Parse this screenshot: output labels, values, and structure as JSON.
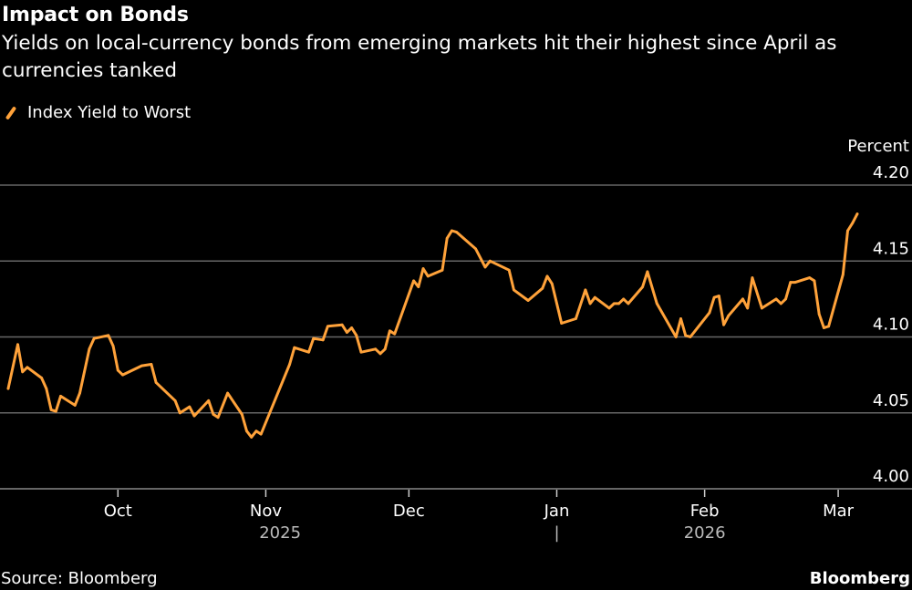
{
  "header": {
    "title": "Impact on Bonds",
    "subtitle": "Yields on local-currency bonds from emerging markets hit their highest since April as currencies tanked"
  },
  "footer": {
    "source": "Source: Bloomberg",
    "logo": "Bloomberg"
  },
  "colors": {
    "series": "#ffa23a",
    "grid": "#666666",
    "background": "#000000"
  },
  "chart_data": {
    "type": "line",
    "title": "Impact on Bonds",
    "ylabel": "Percent",
    "ylim": [
      4.0,
      4.2
    ],
    "yticks": [
      "4.00",
      "4.05",
      "4.10",
      "4.15",
      "4.20"
    ],
    "xlim": [
      "2025-09-08",
      "2026-03-05"
    ],
    "xticks": [
      {
        "label": "Oct",
        "date": "2025-10-01"
      },
      {
        "label": "Nov",
        "date": "2025-11-01"
      },
      {
        "label": "Dec",
        "date": "2025-12-01"
      },
      {
        "label": "Jan",
        "date": "2026-01-01"
      },
      {
        "label": "Feb",
        "date": "2026-02-01"
      },
      {
        "label": "Mar",
        "date": "2026-03-01"
      }
    ],
    "years": [
      {
        "label": "2025",
        "date": "2025-11-04"
      },
      {
        "label": "2026",
        "date": "2026-02-01"
      }
    ],
    "year_separator": "|",
    "grid": "horizontal",
    "legend": "top-left",
    "series": [
      {
        "name": "Index Yield to Worst",
        "points": [
          [
            "2025-09-08",
            4.066
          ],
          [
            "2025-09-10",
            4.095
          ],
          [
            "2025-09-11",
            4.077
          ],
          [
            "2025-09-12",
            4.08
          ],
          [
            "2025-09-15",
            4.073
          ],
          [
            "2025-09-16",
            4.066
          ],
          [
            "2025-09-17",
            4.052
          ],
          [
            "2025-09-18",
            4.051
          ],
          [
            "2025-09-19",
            4.061
          ],
          [
            "2025-09-22",
            4.055
          ],
          [
            "2025-09-23",
            4.063
          ],
          [
            "2025-09-25",
            4.092
          ],
          [
            "2025-09-26",
            4.099
          ],
          [
            "2025-09-29",
            4.101
          ],
          [
            "2025-09-30",
            4.094
          ],
          [
            "2025-10-01",
            4.078
          ],
          [
            "2025-10-02",
            4.075
          ],
          [
            "2025-10-06",
            4.081
          ],
          [
            "2025-10-08",
            4.082
          ],
          [
            "2025-10-09",
            4.07
          ],
          [
            "2025-10-13",
            4.058
          ],
          [
            "2025-10-14",
            4.05
          ],
          [
            "2025-10-16",
            4.054
          ],
          [
            "2025-10-17",
            4.048
          ],
          [
            "2025-10-20",
            4.058
          ],
          [
            "2025-10-21",
            4.049
          ],
          [
            "2025-10-22",
            4.047
          ],
          [
            "2025-10-24",
            4.063
          ],
          [
            "2025-10-27",
            4.049
          ],
          [
            "2025-10-28",
            4.038
          ],
          [
            "2025-10-29",
            4.034
          ],
          [
            "2025-10-30",
            4.038
          ],
          [
            "2025-10-31",
            4.036
          ],
          [
            "2025-11-03",
            4.059
          ],
          [
            "2025-11-06",
            4.082
          ],
          [
            "2025-11-07",
            4.093
          ],
          [
            "2025-11-10",
            4.09
          ],
          [
            "2025-11-11",
            4.099
          ],
          [
            "2025-11-13",
            4.098
          ],
          [
            "2025-11-14",
            4.107
          ],
          [
            "2025-11-17",
            4.108
          ],
          [
            "2025-11-18",
            4.103
          ],
          [
            "2025-11-19",
            4.106
          ],
          [
            "2025-11-20",
            4.101
          ],
          [
            "2025-11-21",
            4.09
          ],
          [
            "2025-11-24",
            4.092
          ],
          [
            "2025-11-25",
            4.089
          ],
          [
            "2025-11-26",
            4.092
          ],
          [
            "2025-11-27",
            4.104
          ],
          [
            "2025-11-28",
            4.102
          ],
          [
            "2025-12-02",
            4.137
          ],
          [
            "2025-12-03",
            4.133
          ],
          [
            "2025-12-04",
            4.145
          ],
          [
            "2025-12-05",
            4.14
          ],
          [
            "2025-12-08",
            4.144
          ],
          [
            "2025-12-09",
            4.165
          ],
          [
            "2025-12-10",
            4.17
          ],
          [
            "2025-12-11",
            4.169
          ],
          [
            "2025-12-15",
            4.158
          ],
          [
            "2025-12-17",
            4.146
          ],
          [
            "2025-12-18",
            4.15
          ],
          [
            "2025-12-22",
            4.144
          ],
          [
            "2025-12-23",
            4.131
          ],
          [
            "2025-12-26",
            4.124
          ],
          [
            "2025-12-29",
            4.132
          ],
          [
            "2025-12-30",
            4.14
          ],
          [
            "2025-12-31",
            4.135
          ],
          [
            "2026-01-02",
            4.109
          ],
          [
            "2026-01-05",
            4.112
          ],
          [
            "2026-01-07",
            4.131
          ],
          [
            "2026-01-08",
            4.122
          ],
          [
            "2026-01-09",
            4.126
          ],
          [
            "2026-01-12",
            4.119
          ],
          [
            "2026-01-13",
            4.122
          ],
          [
            "2026-01-14",
            4.122
          ],
          [
            "2026-01-15",
            4.125
          ],
          [
            "2026-01-16",
            4.122
          ],
          [
            "2026-01-19",
            4.133
          ],
          [
            "2026-01-20",
            4.143
          ],
          [
            "2026-01-22",
            4.122
          ],
          [
            "2026-01-26",
            4.1
          ],
          [
            "2026-01-27",
            4.112
          ],
          [
            "2026-01-28",
            4.101
          ],
          [
            "2026-01-29",
            4.1
          ],
          [
            "2026-02-02",
            4.116
          ],
          [
            "2026-02-03",
            4.126
          ],
          [
            "2026-02-04",
            4.127
          ],
          [
            "2026-02-05",
            4.108
          ],
          [
            "2026-02-06",
            4.114
          ],
          [
            "2026-02-09",
            4.125
          ],
          [
            "2026-02-10",
            4.119
          ],
          [
            "2026-02-11",
            4.139
          ],
          [
            "2026-02-13",
            4.119
          ],
          [
            "2026-02-16",
            4.125
          ],
          [
            "2026-02-17",
            4.122
          ],
          [
            "2026-02-18",
            4.125
          ],
          [
            "2026-02-19",
            4.136
          ],
          [
            "2026-02-20",
            4.136
          ],
          [
            "2026-02-23",
            4.139
          ],
          [
            "2026-02-24",
            4.137
          ],
          [
            "2026-02-25",
            4.115
          ],
          [
            "2026-02-26",
            4.106
          ],
          [
            "2026-02-27",
            4.107
          ],
          [
            "2026-03-02",
            4.141
          ],
          [
            "2026-03-03",
            4.17
          ],
          [
            "2026-03-04",
            4.175
          ],
          [
            "2026-03-05",
            4.181
          ]
        ]
      }
    ]
  }
}
